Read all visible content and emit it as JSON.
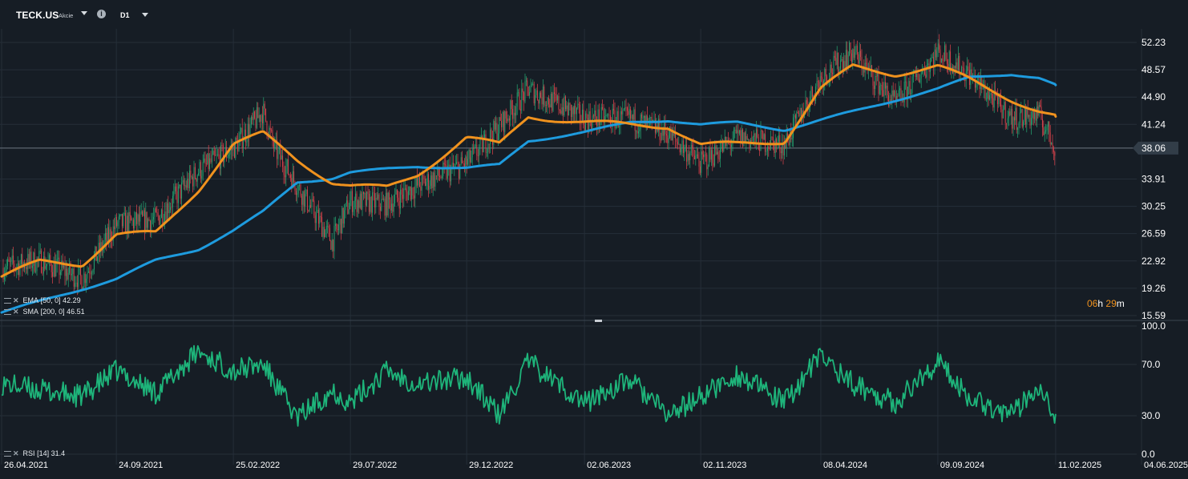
{
  "header": {
    "symbol": "TECK.US",
    "symbol_type": "Akcie",
    "timeframe": "D1"
  },
  "indicators": {
    "ema_label": "EMA",
    "ema_params": "[50, 0]",
    "ema_value": "42.29",
    "sma_label": "SMA",
    "sma_params": "[200, 0]",
    "sma_value": "46.51",
    "rsi_label": "RSI",
    "rsi_params": "[14]",
    "rsi_value": "31.4"
  },
  "countdown": {
    "hours": "06",
    "h": "h",
    "minutes": "29",
    "m": "m"
  },
  "colors": {
    "background": "#161d25",
    "grid": "#252e38",
    "ema": "#f0921e",
    "sma": "#1e9bde",
    "rsi": "#1eb47a",
    "candle_up": "#26a874",
    "candle_down": "#e1444d",
    "price_tag": "#323d48"
  },
  "chart_data": [
    {
      "type": "candlestick",
      "title": "TECK.US",
      "x_ticks": [
        "26.04.2021",
        "24.09.2021",
        "25.02.2022",
        "29.07.2022",
        "29.12.2022",
        "02.06.2023",
        "02.11.2023",
        "08.04.2024",
        "09.09.2024",
        "11.02.2025",
        "04.06.2025"
      ],
      "y_ticks": [
        "52.23",
        "48.57",
        "44.90",
        "41.24",
        "38.06",
        "33.91",
        "30.25",
        "26.59",
        "22.92",
        "19.26",
        "15.59"
      ],
      "ylim": [
        15.59,
        52.23
      ],
      "current_price": 38.06,
      "x": [
        "2021-04-26",
        "2021-06-15",
        "2021-08-10",
        "2021-09-24",
        "2021-11-15",
        "2022-01-10",
        "2022-02-25",
        "2022-04-05",
        "2022-04-20",
        "2022-05-20",
        "2022-07-05",
        "2022-07-29",
        "2022-09-15",
        "2022-10-25",
        "2022-12-29",
        "2023-02-10",
        "2023-03-20",
        "2023-06-02",
        "2023-08-01",
        "2023-09-20",
        "2023-11-02",
        "2023-12-20",
        "2024-02-20",
        "2024-04-08",
        "2024-05-20",
        "2024-07-15",
        "2024-09-09",
        "2024-10-20",
        "2024-12-15",
        "2025-01-20",
        "2025-02-11"
      ],
      "close": [
        22.0,
        23.0,
        20.5,
        27.8,
        28.5,
        35.0,
        38.0,
        43.0,
        38.0,
        33.0,
        25.5,
        31.0,
        30.5,
        33.0,
        36.0,
        41.0,
        46.0,
        42.0,
        42.0,
        40.0,
        36.0,
        39.5,
        38.5,
        47.5,
        51.0,
        44.0,
        51.0,
        48.0,
        42.0,
        42.5,
        38.06
      ],
      "series": [
        {
          "name": "EMA [50, 0]",
          "x": [
            "2021-04-26",
            "2021-06-15",
            "2021-08-10",
            "2021-09-24",
            "2021-11-15",
            "2022-01-10",
            "2022-02-25",
            "2022-04-05",
            "2022-05-20",
            "2022-07-05",
            "2022-07-29",
            "2022-09-15",
            "2022-10-25",
            "2022-12-29",
            "2023-02-10",
            "2023-03-20",
            "2023-06-02",
            "2023-08-01",
            "2023-09-20",
            "2023-11-02",
            "2023-12-20",
            "2024-02-20",
            "2024-04-08",
            "2024-05-20",
            "2024-07-15",
            "2024-09-09",
            "2024-10-20",
            "2024-12-15",
            "2025-01-20",
            "2025-02-11"
          ],
          "values": [
            20.8,
            22.8,
            22.5,
            26.5,
            26.6,
            32.5,
            38.6,
            40.0,
            36.5,
            33.5,
            33.0,
            32.7,
            34.5,
            39.5,
            38.5,
            42.3,
            41.5,
            41.2,
            41.0,
            38.5,
            38.6,
            39.0,
            46.0,
            49.0,
            48.0,
            49.0,
            47.3,
            44.6,
            43.0,
            42.29
          ]
        },
        {
          "name": "SMA [200, 0]",
          "x": [
            "2021-04-26",
            "2021-09-24",
            "2021-11-15",
            "2022-01-10",
            "2022-02-25",
            "2022-04-05",
            "2022-05-20",
            "2022-07-05",
            "2022-07-29",
            "2022-10-25",
            "2022-12-29",
            "2023-02-10",
            "2023-03-20",
            "2023-06-02",
            "2023-08-01",
            "2023-09-20",
            "2023-11-02",
            "2023-12-20",
            "2024-02-20",
            "2024-04-08",
            "2024-07-15",
            "2024-09-09",
            "2024-10-20",
            "2024-12-15",
            "2025-01-20",
            "2025-02-11"
          ],
          "values": [
            16.0,
            20.5,
            23.0,
            24.5,
            27.0,
            29.5,
            33.5,
            34.0,
            34.8,
            35.6,
            35.4,
            35.8,
            39.0,
            40.2,
            41.5,
            41.8,
            41.2,
            41.5,
            40.5,
            41.8,
            44.5,
            46.0,
            47.5,
            48.0,
            47.5,
            46.51
          ]
        }
      ]
    },
    {
      "type": "line",
      "title": "RSI [14]",
      "y_ticks": [
        "100.0",
        "70.0",
        "30.0",
        "0.0"
      ],
      "ylim": [
        0,
        100
      ],
      "series": [
        {
          "name": "RSI [14]",
          "x": [
            "2021-04-26",
            "2021-06-15",
            "2021-08-10",
            "2021-09-24",
            "2021-11-15",
            "2022-01-10",
            "2022-02-25",
            "2022-04-05",
            "2022-05-20",
            "2022-07-05",
            "2022-07-29",
            "2022-09-15",
            "2022-10-25",
            "2022-12-29",
            "2023-02-10",
            "2023-03-20",
            "2023-06-02",
            "2023-08-01",
            "2023-09-20",
            "2023-11-02",
            "2023-12-20",
            "2024-02-20",
            "2024-04-08",
            "2024-05-20",
            "2024-07-15",
            "2024-09-09",
            "2024-10-20",
            "2024-12-15",
            "2025-01-20",
            "2025-02-11"
          ],
          "values": [
            55,
            50,
            45,
            65,
            48,
            80,
            65,
            70,
            28,
            50,
            40,
            65,
            55,
            60,
            30,
            72,
            40,
            58,
            30,
            45,
            62,
            40,
            77,
            55,
            40,
            72,
            45,
            30,
            55,
            31.4
          ]
        }
      ]
    }
  ]
}
